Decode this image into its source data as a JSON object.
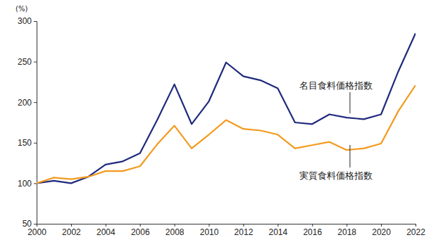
{
  "chart_data": {
    "type": "line",
    "ylabel": "(%)",
    "x": [
      2000,
      2001,
      2002,
      2003,
      2004,
      2005,
      2006,
      2007,
      2008,
      2009,
      2010,
      2011,
      2012,
      2013,
      2014,
      2015,
      2016,
      2017,
      2018,
      2019,
      2020,
      2021,
      2022
    ],
    "series": [
      {
        "name": "名目食料価格指数",
        "color": "#1f2a7c",
        "values": [
          100,
          103,
          100,
          108,
          123,
          127,
          137,
          178,
          222,
          173,
          201,
          249,
          232,
          227,
          217,
          175,
          173,
          185,
          181,
          179,
          185,
          238,
          285
        ]
      },
      {
        "name": "実質食料価格指数",
        "color": "#f39a1e",
        "values": [
          100,
          107,
          105,
          108,
          115,
          115,
          121,
          148,
          171,
          143,
          160,
          178,
          167,
          165,
          160,
          143,
          147,
          151,
          141,
          143,
          149,
          189,
          221
        ]
      }
    ],
    "xlim": [
      2000,
      2022
    ],
    "xticks": [
      2000,
      2002,
      2004,
      2006,
      2008,
      2010,
      2012,
      2014,
      2016,
      2018,
      2020,
      2022
    ],
    "ylim": [
      50,
      300
    ],
    "yticks": [
      50,
      100,
      150,
      200,
      250,
      300
    ],
    "grid": false
  }
}
